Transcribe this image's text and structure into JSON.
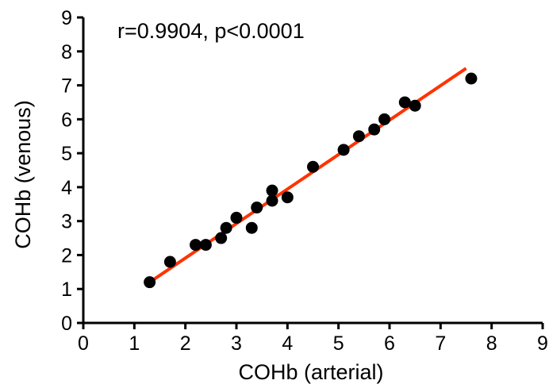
{
  "chart_data": {
    "type": "scatter",
    "title": "",
    "xlabel": "COHb (arterial)",
    "ylabel": "COHb (venous)",
    "annotation": "r=0.9904, p<0.0001",
    "xlim": [
      0,
      9
    ],
    "ylim": [
      0,
      9
    ],
    "x_ticks": [
      "0",
      "1",
      "2",
      "3",
      "4",
      "5",
      "6",
      "7",
      "8",
      "9"
    ],
    "y_ticks": [
      "0",
      "1",
      "2",
      "3",
      "4",
      "5",
      "6",
      "7",
      "8",
      "9"
    ],
    "grid": false,
    "legend": "none",
    "colors": {
      "points": "#000000",
      "fit_line": "#ff3300",
      "axes": "#000000"
    },
    "series": [
      {
        "values": [
          {
            "x": 1.3,
            "y": 1.2
          },
          {
            "x": 1.7,
            "y": 1.8
          },
          {
            "x": 2.2,
            "y": 2.3
          },
          {
            "x": 2.4,
            "y": 2.3
          },
          {
            "x": 2.7,
            "y": 2.5
          },
          {
            "x": 2.8,
            "y": 2.8
          },
          {
            "x": 3.0,
            "y": 3.1
          },
          {
            "x": 3.3,
            "y": 2.8
          },
          {
            "x": 3.4,
            "y": 3.4
          },
          {
            "x": 3.7,
            "y": 3.6
          },
          {
            "x": 3.7,
            "y": 3.9
          },
          {
            "x": 4.0,
            "y": 3.7
          },
          {
            "x": 4.5,
            "y": 4.6
          },
          {
            "x": 5.1,
            "y": 5.1
          },
          {
            "x": 5.4,
            "y": 5.5
          },
          {
            "x": 5.7,
            "y": 5.7
          },
          {
            "x": 5.9,
            "y": 6.0
          },
          {
            "x": 6.3,
            "y": 6.5
          },
          {
            "x": 6.5,
            "y": 6.4
          },
          {
            "x": 7.6,
            "y": 7.2
          }
        ]
      }
    ],
    "fit_line": {
      "x_start": 1.3,
      "y_start": 1.2,
      "x_end": 7.5,
      "y_end": 7.5
    }
  }
}
